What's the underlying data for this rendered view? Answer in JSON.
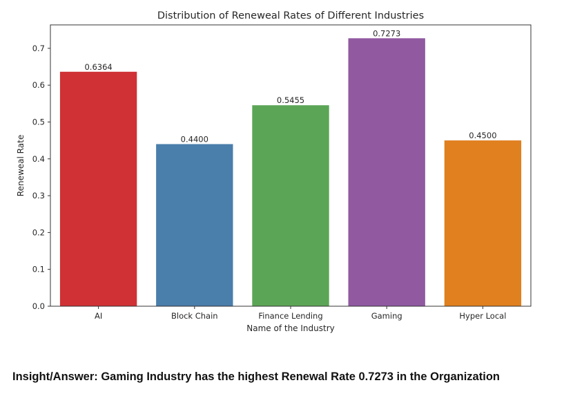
{
  "chart_data": {
    "type": "bar",
    "title": "Distribution of Reneweal Rates of Different Industries",
    "xlabel": "Name of the Industry",
    "ylabel": "Reneweal Rate",
    "categories": [
      "AI",
      "Block Chain",
      "Finance Lending",
      "Gaming",
      "Hyper Local"
    ],
    "values": [
      0.6364,
      0.44,
      0.5455,
      0.7273,
      0.45
    ],
    "value_labels": [
      "0.6364",
      "0.4400",
      "0.5455",
      "0.7273",
      "0.4500"
    ],
    "colors": [
      "#d03135",
      "#4a7eab",
      "#5ba557",
      "#9059a0",
      "#e0801f"
    ],
    "ylim": [
      0,
      0.7636
    ],
    "yticks": [
      0.0,
      0.1,
      0.2,
      0.3,
      0.4,
      0.5,
      0.6,
      0.7
    ],
    "ytick_labels": [
      "0.0",
      "0.1",
      "0.2",
      "0.3",
      "0.4",
      "0.5",
      "0.6",
      "0.7"
    ],
    "grid": false,
    "legend": "none"
  },
  "insight": {
    "text": "Insight/Answer: Gaming Industry has the highest Renewal Rate 0.7273 in the Organization"
  }
}
